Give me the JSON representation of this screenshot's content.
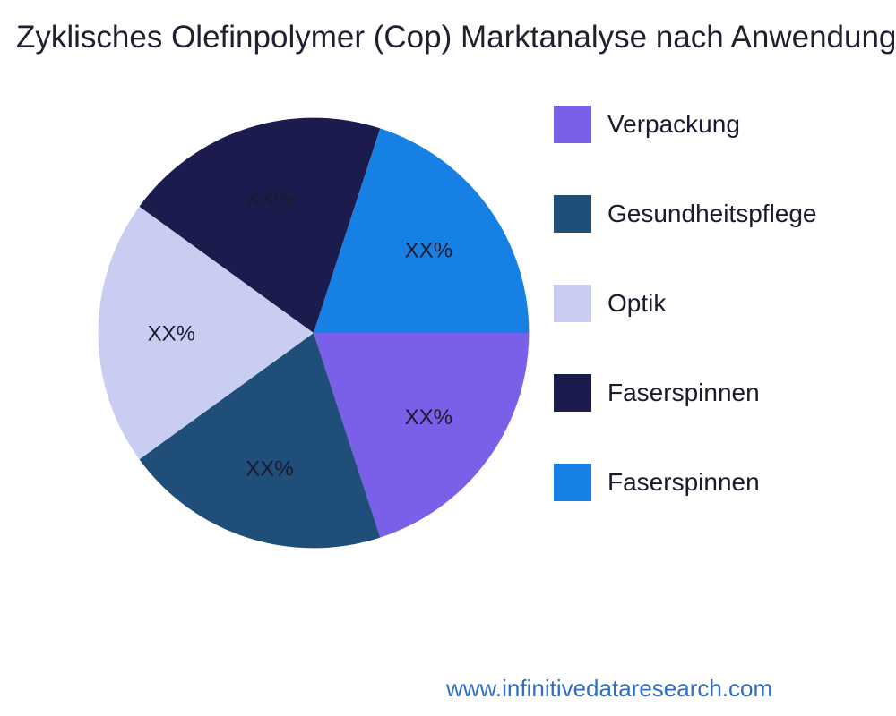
{
  "title": "Zyklisches Olefinpolymer (Cop) Marktanalyse nach Anwendung",
  "footer": {
    "url": "www.infinitivedataresearch.com",
    "color": "#2E6FC0"
  },
  "chart_data": {
    "type": "pie",
    "title": "Zyklisches Olefinpolymer (Cop) Marktanalyse nach Anwendung",
    "legend_position": "right",
    "slices": [
      {
        "label": "Verpackung",
        "value": 20,
        "display": "XX%",
        "color": "#7A5FE8"
      },
      {
        "label": "Gesundheitspflege",
        "value": 20,
        "display": "XX%",
        "color": "#1F4E79"
      },
      {
        "label": "Optik",
        "value": 20,
        "display": "XX%",
        "color": "#C9CDF2"
      },
      {
        "label": "Faserspinnen",
        "value": 20,
        "display": "XX%",
        "color": "#1B1B4E"
      },
      {
        "label": "Faserspinnen",
        "value": 20,
        "display": "XX%",
        "color": "#1680E4"
      }
    ]
  }
}
